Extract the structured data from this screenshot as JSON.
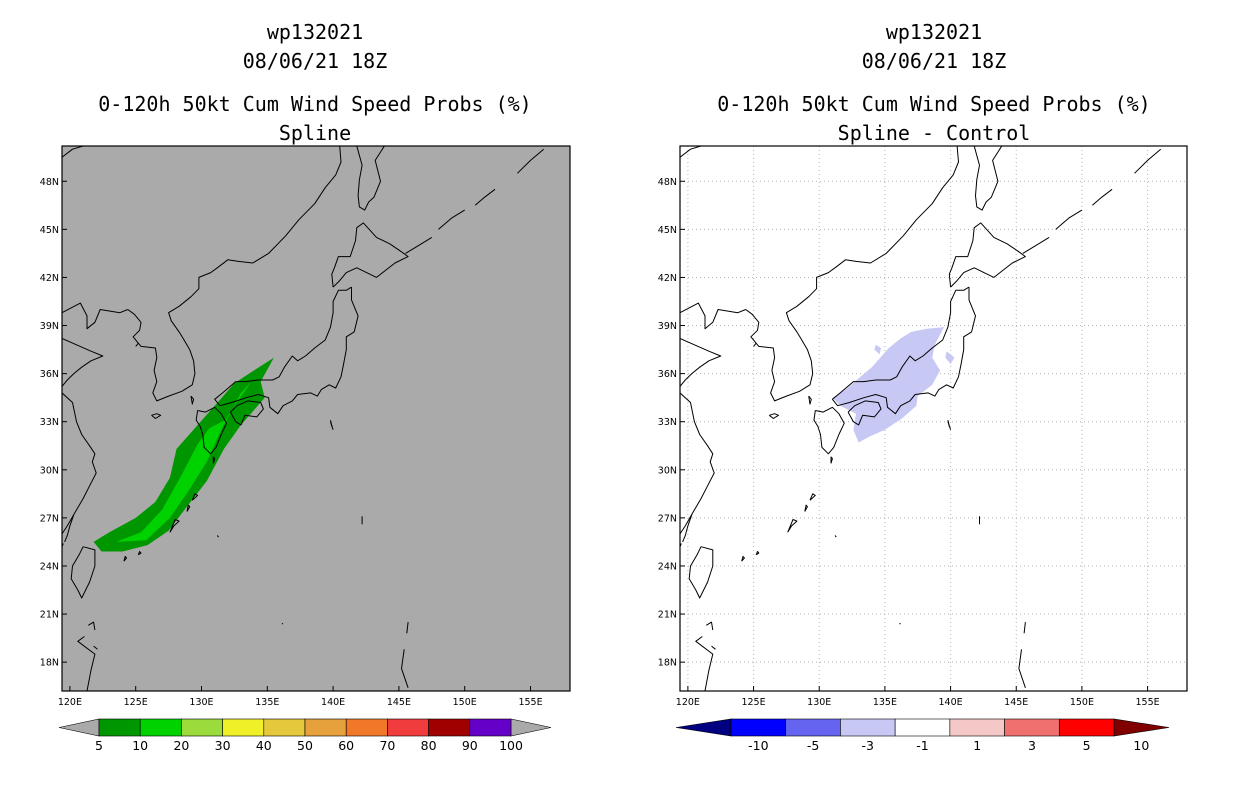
{
  "panels": [
    {
      "storm_id": "wp132021",
      "datetime": "08/06/21 18Z",
      "product_title": "0-120h 50kt Cum Wind Speed Probs (%)",
      "subtitle": "Spline",
      "background_color": "#aaaaaa",
      "colorbar": {
        "labels": [
          "5",
          "10",
          "20",
          "30",
          "40",
          "50",
          "60",
          "70",
          "80",
          "90",
          "100"
        ],
        "colors": [
          "#009600",
          "#00d200",
          "#9bdc3c",
          "#f0f028",
          "#e6c83c",
          "#e6a03c",
          "#f07828",
          "#f03c3c",
          "#a00000",
          "#6400c8"
        ],
        "end_colors": [
          "#aaaaaa",
          "#aaaaaa"
        ]
      }
    },
    {
      "storm_id": "wp132021",
      "datetime": "08/06/21 18Z",
      "product_title": "0-120h 50kt Cum Wind Speed Probs (%)",
      "subtitle": "Spline - Control",
      "background_color": "#ffffff",
      "colorbar": {
        "labels": [
          "-10",
          "-5",
          "-3",
          "-1",
          "1",
          "3",
          "5",
          "10"
        ],
        "colors": [
          "#0000ff",
          "#6464f0",
          "#c8c8f5",
          "#ffffff",
          "#f5c8c8",
          "#f07070",
          "#ff0000"
        ],
        "end_colors": [
          "#000080",
          "#800000"
        ]
      }
    }
  ],
  "map_axes": {
    "lon_labels": [
      "120E",
      "125E",
      "130E",
      "135E",
      "140E",
      "145E",
      "150E",
      "155E"
    ],
    "lat_labels": [
      "48N",
      "45N",
      "42N",
      "39N",
      "36N",
      "33N",
      "30N",
      "27N",
      "24N",
      "21N",
      "18N"
    ],
    "lon_values": [
      120,
      125,
      130,
      135,
      140,
      145,
      150,
      155
    ],
    "lat_values": [
      48,
      45,
      42,
      39,
      36,
      33,
      30,
      27,
      24,
      21,
      18
    ],
    "lon_range": [
      119.4,
      158.0
    ],
    "lat_range": [
      16.2,
      50.2
    ]
  },
  "chart_data": [
    {
      "type": "heatmap",
      "title": "0-120h 50kt Cum Wind Speed Probs (%)",
      "subtitle": "Spline",
      "description_levels": [
        {
          "range": "5-10",
          "color": "#009600"
        },
        {
          "range": "10-20",
          "color": "#00d200"
        }
      ],
      "bands": [
        {
          "level": "5-10",
          "color": "#009600",
          "polygon": [
            [
              121.8,
              25.5
            ],
            [
              123,
              26.1
            ],
            [
              125,
              27.0
            ],
            [
              126.5,
              28.0
            ],
            [
              127.6,
              29.5
            ],
            [
              128.1,
              31.3
            ],
            [
              129.5,
              32.6
            ],
            [
              131,
              34.0
            ],
            [
              132.5,
              35.4
            ],
            [
              134,
              36.2
            ],
            [
              135.5,
              37.0
            ],
            [
              134.5,
              35.5
            ],
            [
              134.8,
              34.5
            ],
            [
              133,
              32.8
            ],
            [
              131.7,
              31.3
            ],
            [
              130.4,
              29.3
            ],
            [
              128.7,
              27.5
            ],
            [
              127.5,
              26.2
            ],
            [
              125.9,
              25.3
            ],
            [
              124,
              24.9
            ],
            [
              122.4,
              24.9
            ]
          ]
        },
        {
          "level": "10-20",
          "color": "#00d200",
          "polygon": [
            [
              123.5,
              25.5
            ],
            [
              125.4,
              26.1
            ],
            [
              127,
              27.5
            ],
            [
              128.5,
              29.7
            ],
            [
              129.7,
              31.6
            ],
            [
              130.6,
              32.6
            ],
            [
              131.8,
              33.1
            ],
            [
              132.5,
              34.0
            ],
            [
              133.8,
              35.5
            ],
            [
              133,
              34.8
            ],
            [
              131.5,
              32.5
            ],
            [
              130.4,
              30.5
            ],
            [
              129.1,
              28.8
            ],
            [
              127.6,
              27.0
            ],
            [
              125.8,
              25.6
            ]
          ]
        }
      ]
    },
    {
      "type": "heatmap",
      "title": "0-120h 50kt Cum Wind Speed Probs (%)",
      "subtitle": "Spline - Control",
      "bands": [
        {
          "level": "-3 to -1",
          "color": "#c8c8f5",
          "polygon": [
            [
              132.7,
              35.5
            ],
            [
              134,
              36.4
            ],
            [
              135.3,
              37.6
            ],
            [
              136.2,
              38.2
            ],
            [
              137,
              38.6
            ],
            [
              138.2,
              38.8
            ],
            [
              139.5,
              38.9
            ],
            [
              138.8,
              37.8
            ],
            [
              138.6,
              37.0
            ],
            [
              139.2,
              36.2
            ],
            [
              138.6,
              35.3
            ],
            [
              137.5,
              34.6
            ],
            [
              137.4,
              34.0
            ],
            [
              136.3,
              33.2
            ],
            [
              135.0,
              32.5
            ],
            [
              133.9,
              32.1
            ],
            [
              133.0,
              31.7
            ],
            [
              132.6,
              32.5
            ],
            [
              132.8,
              33.5
            ],
            [
              131.6,
              34.0
            ],
            [
              131.0,
              34.5
            ],
            [
              132.0,
              35.0
            ]
          ]
        },
        {
          "level": "-3 to -1",
          "color": "#c8c8f5",
          "polygon": [
            [
              134.3,
              37.8
            ],
            [
              134.7,
              37.6
            ],
            [
              134.6,
              37.2
            ],
            [
              134.2,
              37.5
            ]
          ]
        },
        {
          "level": "-3 to -1",
          "color": "#c8c8f5",
          "polygon": [
            [
              139.7,
              37.4
            ],
            [
              140.3,
              37.0
            ],
            [
              140.0,
              36.6
            ],
            [
              139.6,
              37.0
            ]
          ]
        }
      ]
    }
  ]
}
